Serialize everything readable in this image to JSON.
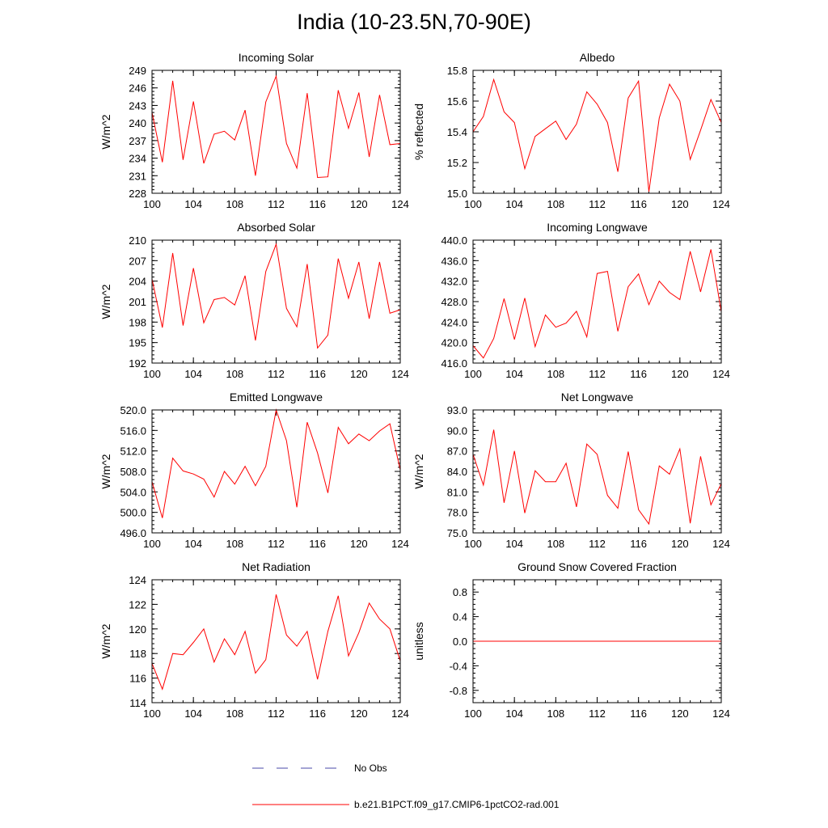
{
  "title": "India (10-23.5N,70-90E)",
  "legend": {
    "items": [
      {
        "label": "No Obs",
        "style": "dashed",
        "color": "#4a4aa8"
      },
      {
        "label": "b.e21.B1PCT.f09_g17.CMIP6-1pctCO2-rad.001",
        "style": "solid",
        "color": "#ff0000"
      }
    ]
  },
  "colors": {
    "series": "#ff0000",
    "frame": "#000000"
  },
  "chart_data": [
    {
      "type": "line",
      "title": "Incoming Solar",
      "ylabel": "W/m^2",
      "xlim": [
        100,
        124
      ],
      "ylim": [
        228,
        249
      ],
      "xticks": [
        "100",
        "104",
        "108",
        "112",
        "116",
        "120",
        "124"
      ],
      "yticks": [
        "228",
        "231",
        "234",
        "237",
        "240",
        "243",
        "246",
        "249"
      ],
      "x": [
        100,
        101,
        102,
        103,
        104,
        105,
        106,
        107,
        108,
        109,
        110,
        111,
        112,
        113,
        114,
        115,
        116,
        117,
        118,
        119,
        120,
        121,
        122,
        123,
        124
      ],
      "series": [
        {
          "values": [
            241.8,
            233.3,
            247.2,
            233.7,
            243.7,
            233.1,
            238.1,
            238.6,
            237.1,
            242.2,
            231.0,
            243.6,
            248.0,
            236.5,
            232.3,
            245.1,
            230.7,
            230.8,
            245.6,
            239.1,
            245.2,
            234.2,
            244.8,
            236.3,
            236.5
          ]
        }
      ]
    },
    {
      "type": "line",
      "title": "Albedo",
      "ylabel": "% reflected",
      "xlim": [
        100,
        124
      ],
      "ylim": [
        15.0,
        15.8
      ],
      "xticks": [
        "100",
        "104",
        "108",
        "112",
        "116",
        "120",
        "124"
      ],
      "yticks": [
        "15.0",
        "15.2",
        "15.4",
        "15.6",
        "15.8"
      ],
      "x": [
        100,
        101,
        102,
        103,
        104,
        105,
        106,
        107,
        108,
        109,
        110,
        111,
        112,
        113,
        114,
        115,
        116,
        117,
        118,
        119,
        120,
        121,
        122,
        123,
        124
      ],
      "series": [
        {
          "values": [
            15.4,
            15.5,
            15.74,
            15.53,
            15.46,
            15.16,
            15.37,
            15.42,
            15.47,
            15.35,
            15.45,
            15.66,
            15.58,
            15.46,
            15.14,
            15.62,
            15.73,
            15.01,
            15.49,
            15.71,
            15.6,
            15.22,
            15.41,
            15.61,
            15.46
          ]
        }
      ]
    },
    {
      "type": "line",
      "title": "Absorbed Solar",
      "ylabel": "W/m^2",
      "xlim": [
        100,
        124
      ],
      "ylim": [
        192,
        210
      ],
      "xticks": [
        "100",
        "104",
        "108",
        "112",
        "116",
        "120",
        "124"
      ],
      "yticks": [
        "192",
        "195",
        "198",
        "201",
        "204",
        "207",
        "210"
      ],
      "x": [
        100,
        101,
        102,
        103,
        104,
        105,
        106,
        107,
        108,
        109,
        110,
        111,
        112,
        113,
        114,
        115,
        116,
        117,
        118,
        119,
        120,
        121,
        122,
        123,
        124
      ],
      "series": [
        {
          "values": [
            204.3,
            197.2,
            208.1,
            197.5,
            205.9,
            197.9,
            201.3,
            201.6,
            200.5,
            204.8,
            195.3,
            205.4,
            209.4,
            200.0,
            197.3,
            206.5,
            194.2,
            196.1,
            207.3,
            201.5,
            206.8,
            198.5,
            206.8,
            199.3,
            199.8
          ]
        }
      ]
    },
    {
      "type": "line",
      "title": "Incoming Longwave",
      "ylabel": "",
      "xlim": [
        100,
        124
      ],
      "ylim": [
        416.0,
        440.0
      ],
      "xticks": [
        "100",
        "104",
        "108",
        "112",
        "116",
        "120",
        "124"
      ],
      "yticks": [
        "416.0",
        "420.0",
        "424.0",
        "428.0",
        "432.0",
        "436.0",
        "440.0"
      ],
      "x": [
        100,
        101,
        102,
        103,
        104,
        105,
        106,
        107,
        108,
        109,
        110,
        111,
        112,
        113,
        114,
        115,
        116,
        117,
        118,
        119,
        120,
        121,
        122,
        123,
        124
      ],
      "series": [
        {
          "values": [
            419.4,
            417.0,
            420.8,
            428.6,
            420.6,
            428.7,
            419.2,
            425.4,
            423.0,
            423.8,
            426.1,
            421.1,
            433.5,
            433.9,
            422.2,
            430.9,
            433.4,
            427.4,
            432.0,
            429.8,
            428.4,
            437.8,
            429.9,
            438.2,
            426.0
          ]
        }
      ]
    },
    {
      "type": "line",
      "title": "Emitted Longwave",
      "ylabel": "W/m^2",
      "xlim": [
        100,
        124
      ],
      "ylim": [
        496.0,
        520.0
      ],
      "xticks": [
        "100",
        "104",
        "108",
        "112",
        "116",
        "120",
        "124"
      ],
      "yticks": [
        "496.0",
        "500.0",
        "504.0",
        "508.0",
        "512.0",
        "516.0",
        "520.0"
      ],
      "x": [
        100,
        101,
        102,
        103,
        104,
        105,
        106,
        107,
        108,
        109,
        110,
        111,
        112,
        113,
        114,
        115,
        116,
        117,
        118,
        119,
        120,
        121,
        122,
        123,
        124
      ],
      "series": [
        {
          "values": [
            506.0,
            498.9,
            510.6,
            508.1,
            507.5,
            506.5,
            503.0,
            508.0,
            505.5,
            509.0,
            505.2,
            509.0,
            520.0,
            514.0,
            501.0,
            517.6,
            511.6,
            503.8,
            516.6,
            513.4,
            515.3,
            514.0,
            515.9,
            517.3,
            508.3
          ]
        }
      ]
    },
    {
      "type": "line",
      "title": "Net Longwave",
      "ylabel": "W/m^2",
      "xlim": [
        100,
        124
      ],
      "ylim": [
        75.0,
        93.0
      ],
      "xticks": [
        "100",
        "104",
        "108",
        "112",
        "116",
        "120",
        "124"
      ],
      "yticks": [
        "75.0",
        "78.0",
        "81.0",
        "84.0",
        "87.0",
        "90.0",
        "93.0"
      ],
      "x": [
        100,
        101,
        102,
        103,
        104,
        105,
        106,
        107,
        108,
        109,
        110,
        111,
        112,
        113,
        114,
        115,
        116,
        117,
        118,
        119,
        120,
        121,
        122,
        123,
        124
      ],
      "series": [
        {
          "values": [
            86.5,
            82.0,
            90.1,
            79.4,
            87.0,
            77.9,
            84.1,
            82.5,
            82.5,
            85.2,
            78.8,
            88.0,
            86.5,
            80.5,
            78.6,
            86.9,
            78.4,
            76.3,
            84.8,
            83.6,
            87.3,
            76.4,
            86.2,
            79.1,
            82.2
          ]
        }
      ]
    },
    {
      "type": "line",
      "title": "Net Radiation",
      "ylabel": "W/m^2",
      "xlim": [
        100,
        124
      ],
      "ylim": [
        114,
        124
      ],
      "xticks": [
        "100",
        "104",
        "108",
        "112",
        "116",
        "120",
        "124"
      ],
      "yticks": [
        "114",
        "116",
        "118",
        "120",
        "122",
        "124"
      ],
      "x": [
        100,
        101,
        102,
        103,
        104,
        105,
        106,
        107,
        108,
        109,
        110,
        111,
        112,
        113,
        114,
        115,
        116,
        117,
        118,
        119,
        120,
        121,
        122,
        123,
        124
      ],
      "series": [
        {
          "values": [
            117.2,
            115.1,
            118.0,
            117.9,
            118.9,
            120.0,
            117.3,
            119.2,
            117.9,
            119.8,
            116.4,
            117.5,
            122.8,
            119.5,
            118.6,
            119.8,
            115.9,
            119.8,
            122.7,
            117.8,
            119.7,
            122.1,
            120.8,
            120.0,
            117.4
          ]
        }
      ]
    },
    {
      "type": "line",
      "title": "Ground Snow Covered Fraction",
      "ylabel": "unitless",
      "xlim": [
        100,
        124
      ],
      "ylim": [
        -1.0,
        1.0
      ],
      "xticks": [
        "100",
        "104",
        "108",
        "112",
        "116",
        "120",
        "124"
      ],
      "yticks": [
        "-0.8",
        "-0.4",
        "0.0",
        "0.4",
        "0.8"
      ],
      "x": [
        100,
        124
      ],
      "series": [
        {
          "values": [
            0.0,
            0.0
          ]
        }
      ]
    }
  ]
}
